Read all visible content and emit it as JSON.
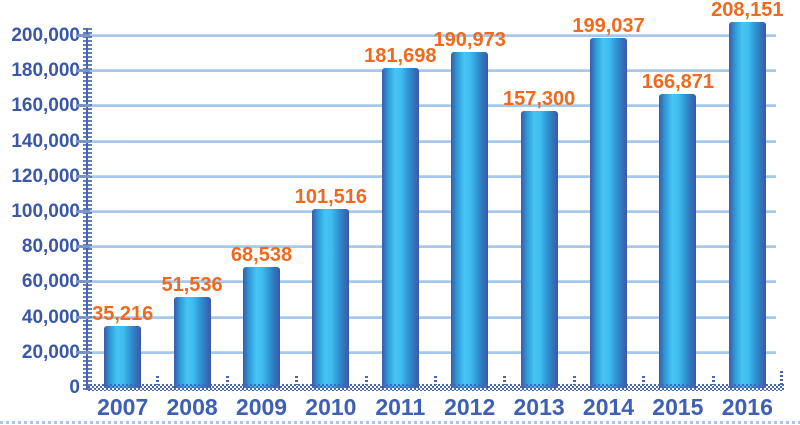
{
  "chart_data": {
    "type": "bar",
    "title": "",
    "xlabel": "",
    "ylabel": "",
    "categories": [
      "2007",
      "2008",
      "2009",
      "2010",
      "2011",
      "2012",
      "2013",
      "2014",
      "2015",
      "2016"
    ],
    "values": [
      35216,
      51536,
      68538,
      101516,
      181698,
      190973,
      157300,
      199037,
      166871,
      208151
    ],
    "value_labels": [
      "35,216",
      "51,536",
      "68,538",
      "101,516",
      "181,698",
      "190,973",
      "157,300",
      "199,037",
      "166,871",
      "208,151"
    ],
    "ylim": [
      0,
      200000
    ],
    "ytick_step": 20000,
    "ytick_labels": [
      "0",
      "20,000",
      "40,000",
      "60,000",
      "80,000",
      "100,000",
      "120,000",
      "140,000",
      "160,000",
      "180,000",
      "200,000"
    ],
    "grid": true,
    "legend": false,
    "colors": {
      "bar_edge": "#3d58a7",
      "bar_highlight": "#46c4f3",
      "gridline": "#a6c8ec",
      "axis": "#4a66b0",
      "y_tick_label": "#3a57a8",
      "x_tick_label": "#3e5fb2",
      "value_label": "#f2691e",
      "background": "#ffffff"
    }
  }
}
